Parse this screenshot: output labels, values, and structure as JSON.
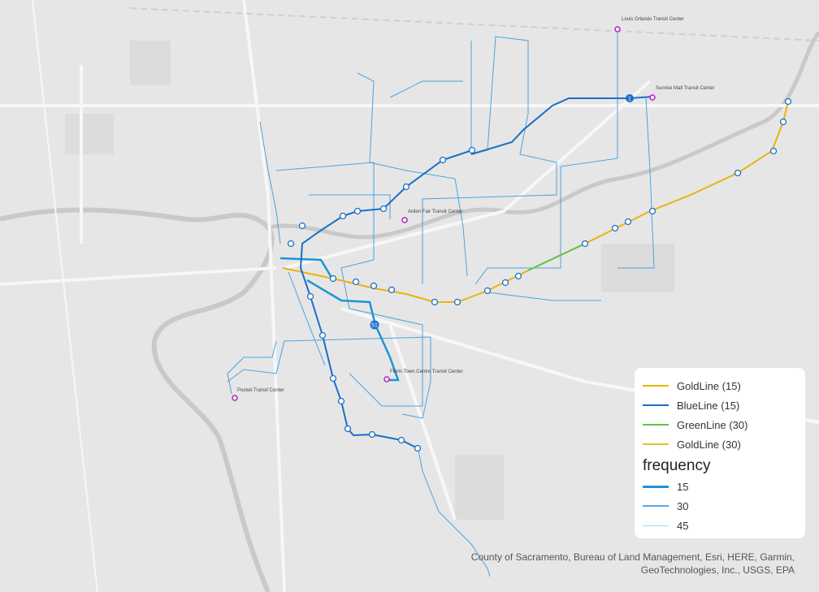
{
  "map": {
    "labels": [
      {
        "text": "Louis Orlando Transit Center"
      },
      {
        "text": "Sunrise Mall Transit Center"
      },
      {
        "text": "Arden Fair Transit Center"
      },
      {
        "text": "Florin Town Centre Transit Center"
      },
      {
        "text": "Pocket Transit Center"
      }
    ],
    "route_badges": [
      "1",
      "51"
    ],
    "legend": {
      "lines": [
        {
          "label": "GoldLine (15)",
          "color": "#e8b40f"
        },
        {
          "label": "BlueLine (15)",
          "color": "#1a6fc9"
        },
        {
          "label": "GreenLine (30)",
          "color": "#5fc24a"
        },
        {
          "label": "GoldLine (30)",
          "color": "#e6bd2e"
        }
      ],
      "frequency_title": "frequency",
      "frequency": [
        {
          "value": 15,
          "color": "#1b95d6"
        },
        {
          "value": 30,
          "color": "#5aa9e0"
        },
        {
          "value": 45,
          "color": "#a7d3ef"
        }
      ]
    },
    "attribution": "County of Sacramento, Bureau of Land Management, Esri, HERE, Garmin, GeoTechnologies, Inc., USGS, EPA"
  }
}
